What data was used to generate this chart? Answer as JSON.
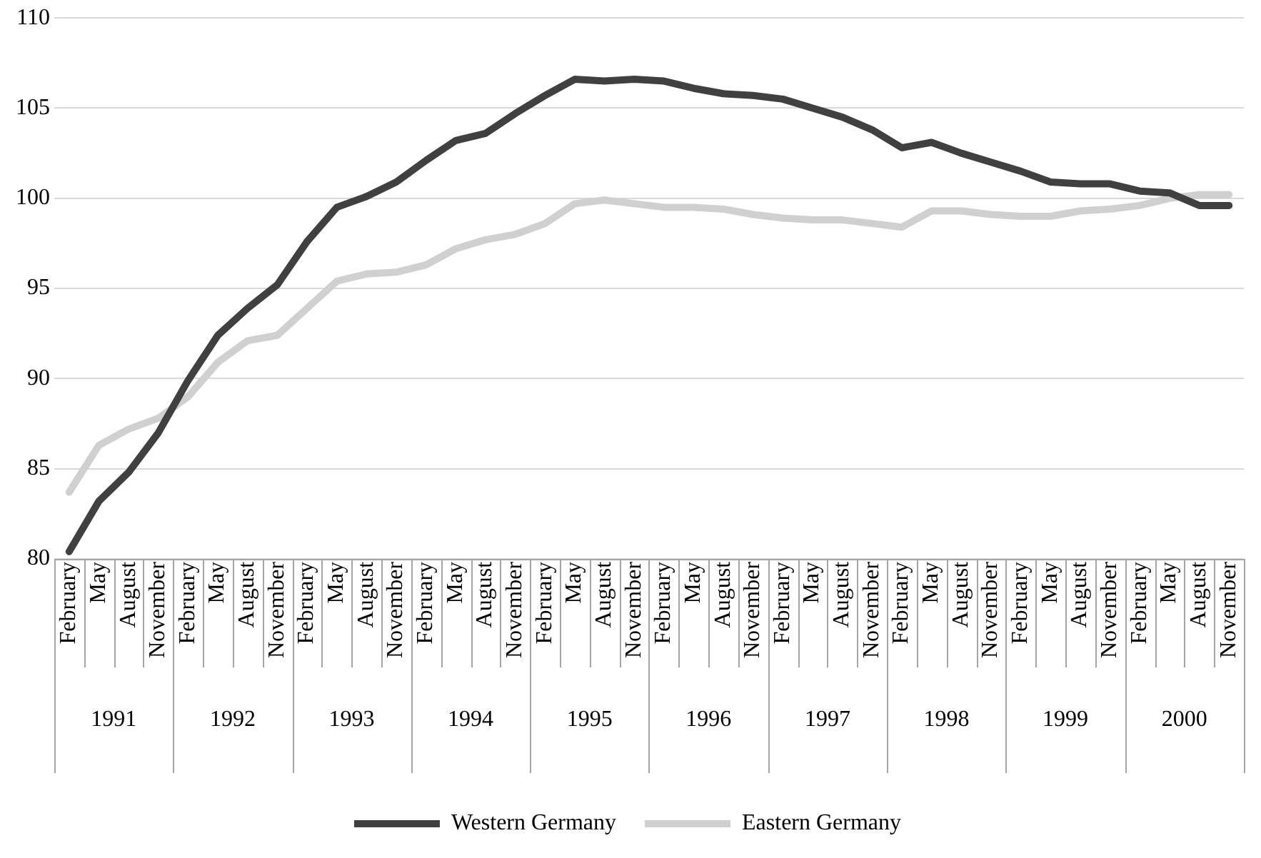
{
  "chart_data": {
    "type": "line",
    "categories": [
      "February",
      "May",
      "August",
      "November",
      "February",
      "May",
      "August",
      "November",
      "February",
      "May",
      "August",
      "November",
      "February",
      "May",
      "August",
      "November",
      "February",
      "May",
      "August",
      "November",
      "February",
      "May",
      "August",
      "November",
      "February",
      "May",
      "August",
      "November",
      "February",
      "May",
      "August",
      "November",
      "February",
      "May",
      "August",
      "November",
      "February",
      "May",
      "August",
      "November"
    ],
    "annotations": [
      "1991",
      "1992",
      "1993",
      "1994",
      "1995",
      "1996",
      "1997",
      "1998",
      "1999",
      "2000"
    ],
    "series": [
      {
        "name": "Western Germany",
        "color": "#404040",
        "values": [
          80.4,
          83.2,
          84.8,
          87.0,
          89.9,
          92.4,
          93.9,
          95.2,
          97.6,
          99.5,
          100.1,
          100.9,
          102.1,
          103.2,
          103.6,
          104.7,
          105.7,
          106.6,
          106.5,
          106.6,
          106.5,
          106.1,
          105.8,
          105.7,
          105.5,
          105.0,
          104.5,
          103.8,
          102.8,
          103.1,
          102.5,
          102.0,
          101.5,
          100.9,
          100.8,
          100.8,
          100.4,
          100.3,
          99.6,
          99.6
        ]
      },
      {
        "name": "Eastern Germany",
        "color": "#d0d0d0",
        "values": [
          83.7,
          86.3,
          87.2,
          87.8,
          89.0,
          90.9,
          92.1,
          92.4,
          93.9,
          95.4,
          95.8,
          95.9,
          96.3,
          97.2,
          97.7,
          98.0,
          98.6,
          99.7,
          99.9,
          99.7,
          99.5,
          99.5,
          99.4,
          99.1,
          98.9,
          98.8,
          98.8,
          98.6,
          98.4,
          99.3,
          99.3,
          99.1,
          99.0,
          99.0,
          99.3,
          99.4,
          99.6,
          100.0,
          100.2,
          100.2
        ]
      }
    ],
    "ylim": [
      80,
      110
    ],
    "yticks": [
      80,
      85,
      90,
      95,
      100,
      105,
      110
    ],
    "grid": "y",
    "legend": "bottom",
    "marker": "none",
    "line_style": "solid"
  }
}
